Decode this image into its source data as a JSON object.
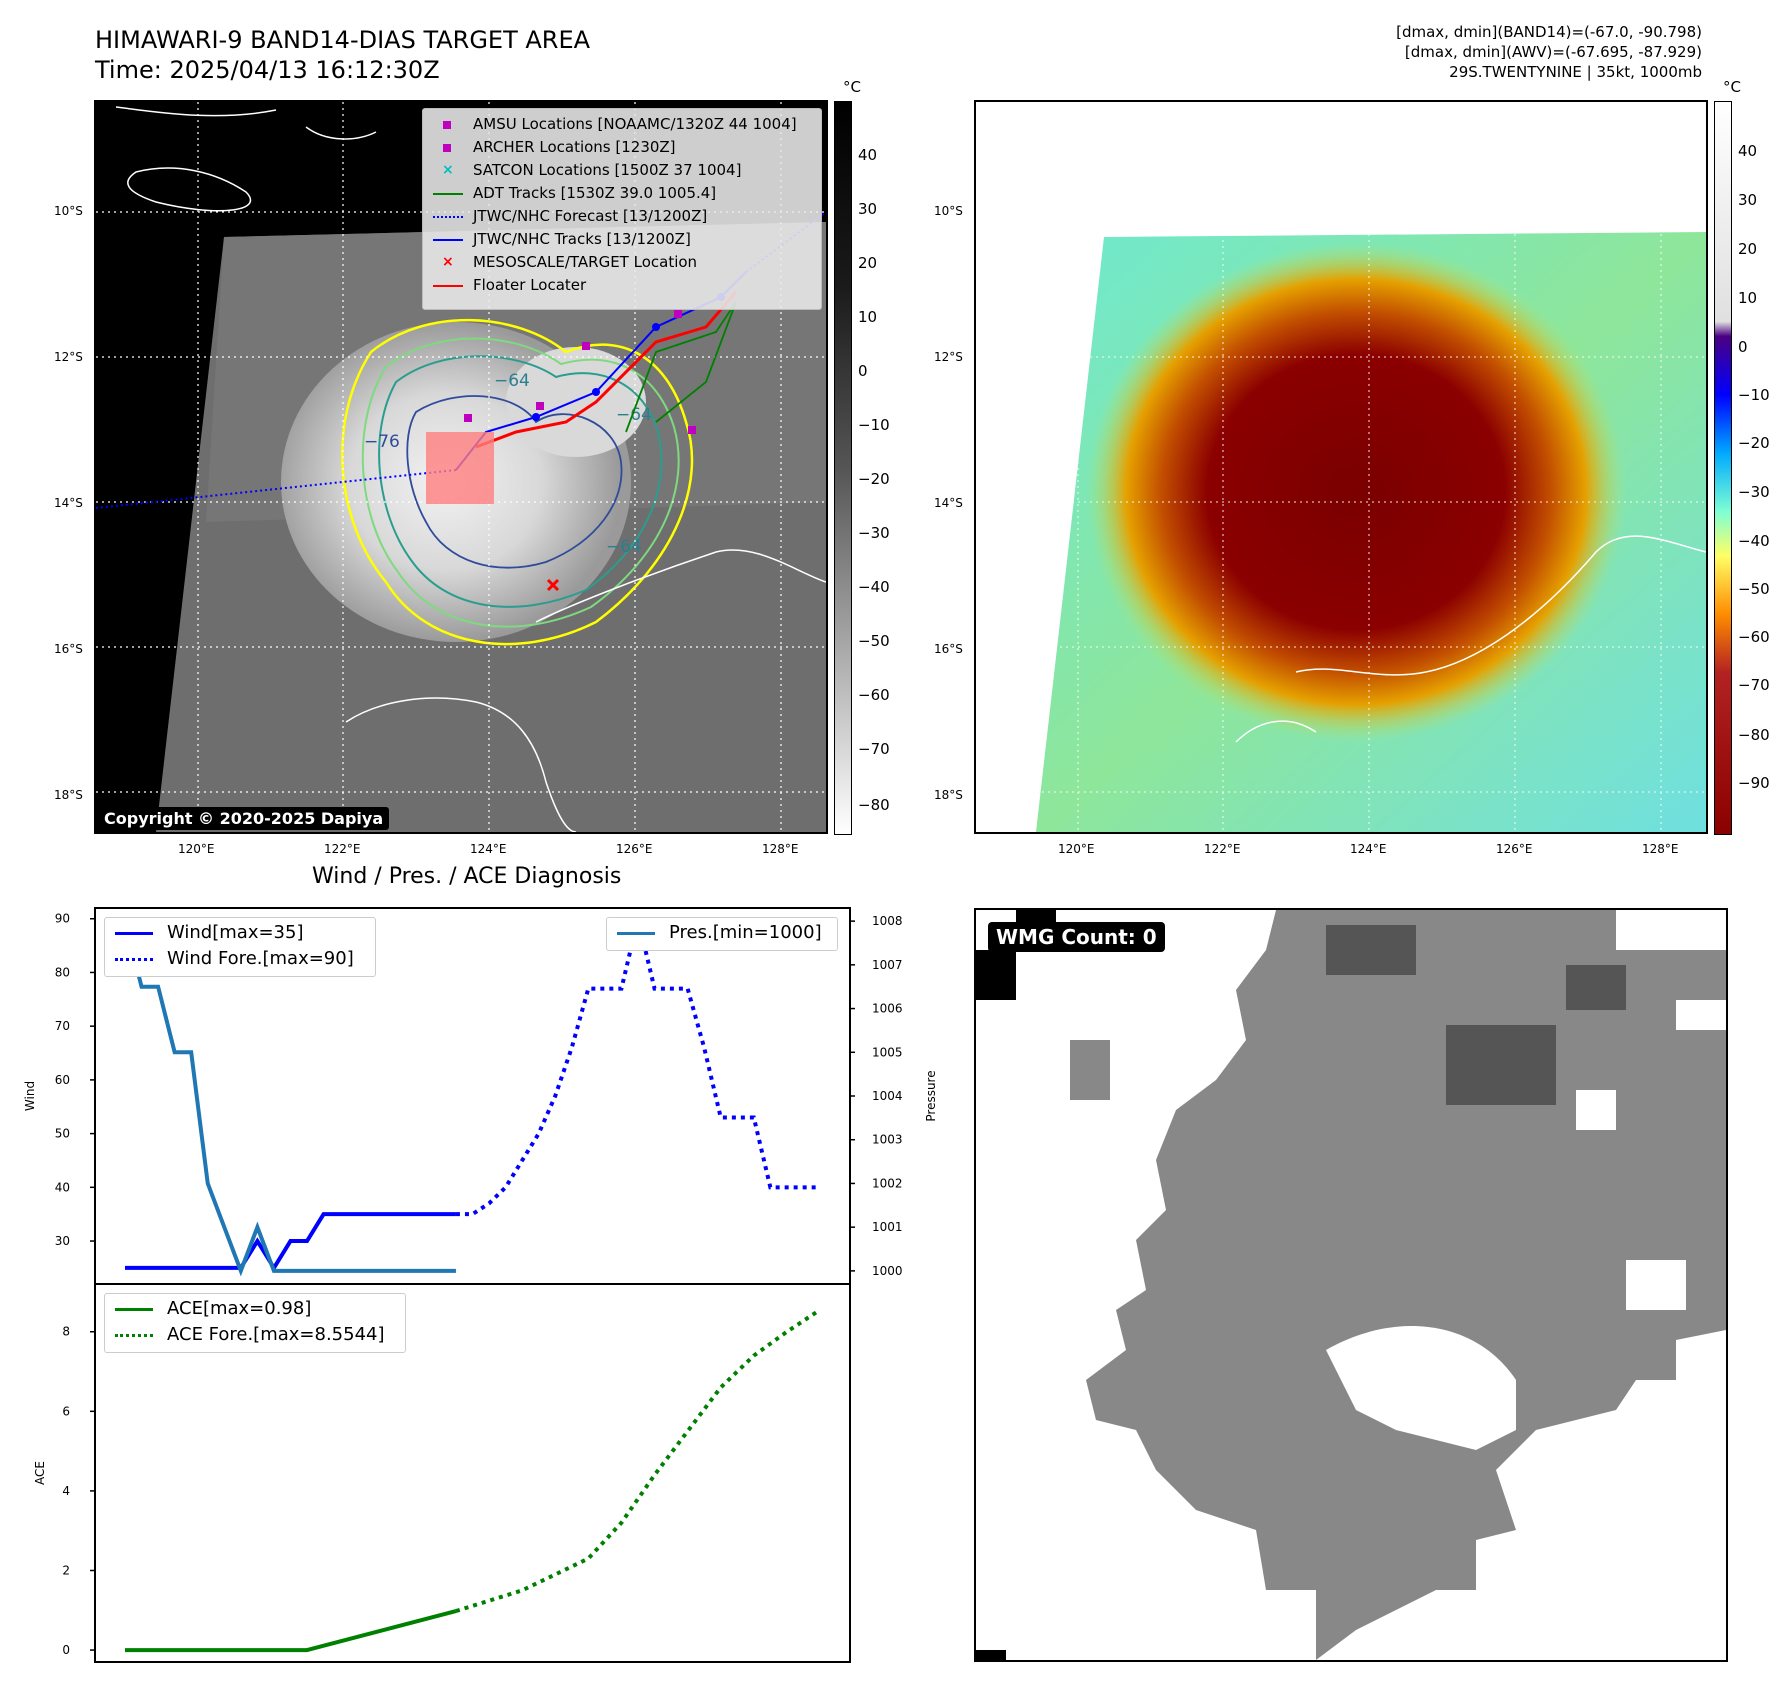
{
  "header": {
    "title_line1": "HIMAWARI-9 BAND14-DIAS TARGET AREA",
    "title_line2": "Time: 2025/04/13 16:12:30Z",
    "info_line1": "[dmax, dmin](BAND14)=(-67.0, -90.798)",
    "info_line2": "[dmax, dmin](AWV)=(-67.695, -87.929)",
    "info_line3": "29S.TWENTYNINE | 35kt, 1000mb"
  },
  "map_axes": {
    "lat_labels": [
      "10°S",
      "12°S",
      "14°S",
      "16°S",
      "18°S"
    ],
    "lon_labels": [
      "120°E",
      "122°E",
      "124°E",
      "126°E",
      "128°E"
    ]
  },
  "colorbar_gray": {
    "unit": "°C",
    "ticks": [
      "40",
      "30",
      "20",
      "10",
      "0",
      "−10",
      "−20",
      "−30",
      "−40",
      "−50",
      "−60",
      "−70",
      "−80"
    ]
  },
  "colorbar_color": {
    "unit": "°C",
    "ticks": [
      "40",
      "30",
      "20",
      "10",
      "0",
      "−10",
      "−20",
      "−30",
      "−40",
      "−50",
      "−60",
      "−70",
      "−80",
      "−90"
    ]
  },
  "map_legend": [
    {
      "label": "AMSU Locations [NOAAMC/1320Z 44 1004]",
      "marker": "square",
      "color": "#bf00bf"
    },
    {
      "label": "ARCHER Locations [1230Z]",
      "marker": "square",
      "color": "#bf00bf"
    },
    {
      "label": "SATCON Locations [1500Z 37 1004]",
      "marker": "x",
      "color": "#00bfbf"
    },
    {
      "label": "ADT Tracks [1530Z 39.0 1005.4]",
      "marker": "line",
      "color": "#008000"
    },
    {
      "label": "JTWC/NHC Forecast [13/1200Z]",
      "marker": "dotted",
      "color": "#0000ff"
    },
    {
      "label": "JTWC/NHC Tracks [13/1200Z]",
      "marker": "line-dot",
      "color": "#0000ff"
    },
    {
      "label": "MESOSCALE/TARGET Location",
      "marker": "x",
      "color": "#ff0000"
    },
    {
      "label": "Floater Locater",
      "marker": "line",
      "color": "#ff0000"
    }
  ],
  "contour_labels": [
    "−64",
    "−76",
    "−64",
    "−64"
  ],
  "copyright": "Copyright © 2020-2025 Dapiya",
  "wmg_label": "WMG Count: 0",
  "diagnosis_title": "Wind / Pres. / ACE Diagnosis",
  "chart_data": [
    {
      "type": "line",
      "title": "Wind / Pres. / ACE Diagnosis",
      "ylabel": "Wind",
      "y2label": "Pressure",
      "ylim": [
        22,
        92
      ],
      "y2lim": [
        999.7,
        1008.3
      ],
      "yticks": [
        30,
        40,
        50,
        60,
        70,
        80,
        90
      ],
      "y2ticks": [
        1000,
        1001,
        1002,
        1003,
        1004,
        1005,
        1006,
        1007,
        1008
      ],
      "legend_left": [
        "Wind[max=35]",
        "Wind Fore.[max=90]"
      ],
      "legend_right": [
        "Pres.[min=1000]"
      ],
      "series": [
        {
          "name": "Wind[max=35]",
          "axis": "left",
          "style": "solid",
          "color": "#0000ff",
          "x": [
            0,
            1,
            2,
            3,
            4,
            5,
            6,
            7,
            8,
            9,
            10,
            11,
            12,
            13,
            14,
            15,
            16,
            17,
            18,
            19,
            20
          ],
          "values": [
            25,
            25,
            25,
            25,
            25,
            25,
            25,
            25,
            30,
            25,
            30,
            30,
            35,
            35,
            35,
            35,
            35,
            35,
            35,
            35,
            35
          ]
        },
        {
          "name": "Wind Fore.[max=90]",
          "axis": "left",
          "style": "dotted",
          "color": "#0000ff",
          "x": [
            20,
            21,
            22,
            23,
            24,
            25,
            26,
            27,
            28,
            29,
            30,
            31,
            32,
            33,
            34,
            35,
            36,
            37,
            38,
            39,
            40,
            41,
            42
          ],
          "values": [
            35,
            35,
            37,
            40,
            45,
            50,
            57,
            66,
            77,
            77,
            77,
            90,
            77,
            77,
            77,
            66,
            53,
            53,
            53,
            40,
            40,
            40,
            40
          ]
        },
        {
          "name": "Pres.[min=1000]",
          "axis": "right",
          "style": "solid",
          "color": "#1f77b4",
          "x": [
            0,
            1,
            2,
            3,
            4,
            5,
            6,
            7,
            8,
            9,
            10,
            11,
            12,
            13,
            14,
            15,
            16,
            17,
            18,
            19,
            20
          ],
          "values": [
            1008,
            1006.5,
            1006.5,
            1005,
            1005,
            1002,
            1001,
            1000,
            1001,
            1000,
            1000,
            1000,
            1000,
            1000,
            1000,
            1000,
            1000,
            1000,
            1000,
            1000,
            1000
          ]
        }
      ]
    },
    {
      "type": "line",
      "ylabel": "ACE",
      "ylim": [
        -0.3,
        9.2
      ],
      "yticks": [
        0,
        2,
        4,
        6,
        8
      ],
      "series": [
        {
          "name": "ACE[max=0.98]",
          "style": "solid",
          "color": "#008000",
          "x": [
            0,
            11,
            20
          ],
          "values": [
            0,
            0,
            0.98
          ]
        },
        {
          "name": "ACE Fore.[max=8.5544]",
          "style": "dotted",
          "color": "#008000",
          "x": [
            20,
            24,
            28,
            30,
            32,
            34,
            36,
            38,
            40,
            42
          ],
          "values": [
            0.98,
            1.5,
            2.3,
            3.2,
            4.4,
            5.5,
            6.6,
            7.4,
            8.0,
            8.55
          ]
        }
      ]
    }
  ]
}
